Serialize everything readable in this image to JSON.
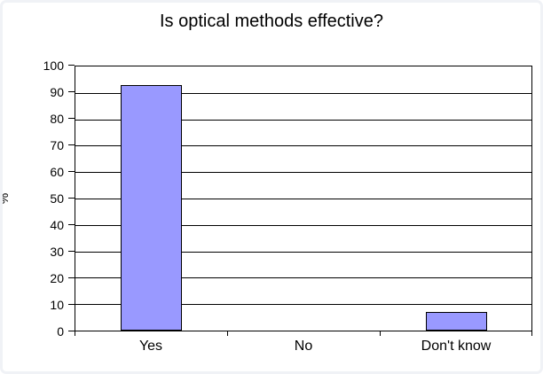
{
  "chart_data": {
    "type": "bar",
    "title": "Is optical methods effective?",
    "xlabel": "",
    "ylabel": "%",
    "categories": [
      "Yes",
      "No",
      "Don't know"
    ],
    "values": [
      93,
      0,
      7
    ],
    "ylim": [
      0,
      100
    ],
    "ytick_step": 10,
    "grid": true,
    "legend": "none",
    "colors": {
      "bar_fill": "#9999FF",
      "bar_border": "#000000",
      "axis": "#000000",
      "gridline": "#000000",
      "text": "#000000",
      "background": "#FFFFFF",
      "frame_border": "#F0F2F6"
    }
  }
}
